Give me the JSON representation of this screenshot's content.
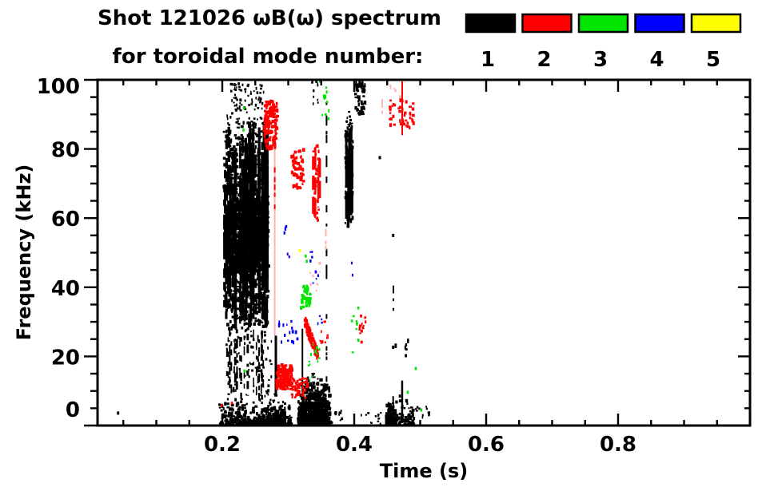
{
  "header": {
    "line1": "Shot 121026 ωB(ω) spectrum",
    "line2": "for toroidal mode number:"
  },
  "legend": {
    "modes": [
      {
        "label": "1",
        "color": "#000000"
      },
      {
        "label": "2",
        "color": "#ff0000"
      },
      {
        "label": "3",
        "color": "#00e400"
      },
      {
        "label": "4",
        "color": "#0000ff"
      },
      {
        "label": "5",
        "color": "#ffff00"
      }
    ]
  },
  "chart_data": {
    "type": "scatter",
    "title": "Shot 121026 ωB(ω) spectrum for toroidal mode number: 1-5",
    "xlabel": "Time (s)",
    "ylabel": "Frequency (kHz)",
    "xlim": [
      0.0109,
      1.0
    ],
    "ylim": [
      0,
      100
    ],
    "x_major_ticks": [
      0.2,
      0.4,
      0.6,
      0.8
    ],
    "x_tick_labels": [
      "0.2",
      "0.4",
      "0.6",
      "0.8"
    ],
    "x_minor_step": 0.05,
    "y_major_ticks": [
      0,
      20,
      40,
      60,
      80,
      100
    ],
    "y_tick_labels": [
      "0",
      "20",
      "40",
      "60",
      "80",
      "100"
    ],
    "y_minor_step": 5,
    "grid": false,
    "legend_position": "top-right",
    "mode_colors": {
      "1": "#000000",
      "2": "#ff0000",
      "3": "#00e400",
      "4": "#0000ff",
      "5": "#ffff00"
    },
    "pink_color": "#ffb2b2",
    "clusters": [
      {
        "style": "strands",
        "mode": 1,
        "t": [
          0.2025,
          0.2705
        ],
        "f": [
          28,
          88
        ],
        "strands": 58,
        "sw": [
          2,
          4
        ],
        "seg": [
          6,
          38
        ],
        "gap": [
          2,
          14
        ],
        "sub": 0.35,
        "seed": 11
      },
      {
        "style": "speckle",
        "mode": 1,
        "t": [
          0.2025,
          0.2705
        ],
        "f": [
          28,
          88
        ],
        "n": 620,
        "w": [
          2,
          4
        ],
        "h": [
          2,
          5
        ],
        "seed": 12
      },
      {
        "style": "speckle",
        "mode": 1,
        "t": [
          0.2121,
          0.2655
        ],
        "f": [
          44,
          65
        ],
        "n": 520,
        "w": [
          2.5,
          5
        ],
        "h": [
          3,
          7
        ],
        "seed": 13
      },
      {
        "style": "speckle",
        "mode": 1,
        "t": [
          0.206,
          0.263
        ],
        "f": [
          88,
          99
        ],
        "n": 85,
        "w": [
          1.5,
          3
        ],
        "h": [
          2,
          4
        ],
        "seed": 14
      },
      {
        "style": "strands",
        "mode": 1,
        "t": [
          0.206,
          0.2745
        ],
        "f": [
          6,
          28
        ],
        "strands": 22,
        "sw": [
          1.5,
          3
        ],
        "seg": [
          3,
          12
        ],
        "gap": [
          4,
          18
        ],
        "sub": 0.3,
        "seed": 15
      },
      {
        "style": "speckle",
        "mode": 1,
        "t": [
          0.206,
          0.2745
        ],
        "f": [
          6,
          28
        ],
        "n": 90,
        "w": [
          1.5,
          3
        ],
        "h": [
          2,
          4
        ],
        "seed": 16
      },
      {
        "style": "bottom",
        "mode": 1,
        "t": [
          0.1955,
          0.3055
        ],
        "f": [
          0,
          7
        ],
        "n": 430,
        "w": [
          2,
          4
        ],
        "h": [
          2,
          5
        ],
        "seed": 17
      },
      {
        "style": "bottom",
        "mode": 1,
        "t": [
          0.257,
          0.296
        ],
        "f": [
          0,
          9.5
        ],
        "n": 90,
        "w": [
          2,
          4
        ],
        "h": [
          2,
          4
        ],
        "seed": 18
      },
      {
        "style": "bottom",
        "mode": 1,
        "t": [
          0.3152,
          0.3636
        ],
        "f": [
          0,
          13
        ],
        "n": 520,
        "w": [
          2,
          4.5
        ],
        "h": [
          2,
          5
        ],
        "seed": 19
      },
      {
        "style": "bottom",
        "mode": 1,
        "t": [
          0.3212,
          0.3576
        ],
        "f": [
          0,
          16.5
        ],
        "n": 280,
        "w": [
          2,
          4.5
        ],
        "h": [
          2,
          5
        ],
        "seed": 20
      },
      {
        "style": "vline",
        "mode": 1,
        "t": [
          0.2812
        ],
        "f": [
          9,
          26
        ],
        "lw": 3
      },
      {
        "style": "vline",
        "mode": 1,
        "t": [
          0.3215
        ],
        "f": [
          6,
          28
        ],
        "lw": 2
      },
      {
        "style": "dashvline",
        "mode": 1,
        "t": [
          0.358
        ],
        "f": [
          12,
          97
        ],
        "n": 22,
        "h": [
          3,
          10
        ],
        "lw": 2,
        "seed": 21
      },
      {
        "style": "strands",
        "mode": 1,
        "t": [
          0.3865,
          0.398
        ],
        "f": [
          57,
          86.5
        ],
        "strands": 9,
        "sw": [
          2,
          3.5
        ],
        "seg": [
          15,
          60
        ],
        "gap": [
          2,
          8
        ],
        "sub": 0.25,
        "seed": 22
      },
      {
        "style": "speckle",
        "mode": 1,
        "t": [
          0.3865,
          0.398
        ],
        "f": [
          57,
          86.5
        ],
        "n": 90,
        "w": [
          2,
          3.5
        ],
        "h": [
          2,
          6
        ],
        "seed": 23
      },
      {
        "style": "speckle",
        "mode": 1,
        "t": [
          0.388,
          0.3965
        ],
        "f": [
          86.5,
          91
        ],
        "n": 12,
        "w": [
          1.5,
          3
        ],
        "h": [
          2,
          4
        ],
        "seed": 24
      },
      {
        "style": "speckle",
        "mode": 1,
        "t": [
          0.402,
          0.417
        ],
        "f": [
          90,
          99.5
        ],
        "n": 60,
        "w": [
          2,
          3.5
        ],
        "h": [
          2,
          5
        ],
        "seed": 25
      },
      {
        "style": "speckle",
        "mode": 1,
        "t": [
          0.3355,
          0.3455
        ],
        "f": [
          93,
          99.5
        ],
        "n": 10,
        "w": [
          1.5,
          3
        ],
        "h": [
          2,
          4
        ],
        "seed": 34
      },
      {
        "style": "dashvline",
        "mode": 1,
        "t": [
          0.4594
        ],
        "f": [
          32,
          40
        ],
        "n": 4,
        "h": [
          3,
          8
        ],
        "lw": 2,
        "seed": 26
      },
      {
        "style": "speckle",
        "mode": 1,
        "t": [
          0.4565,
          0.485
        ],
        "f": [
          20,
          25
        ],
        "n": 7,
        "w": [
          2,
          3
        ],
        "h": [
          3,
          6
        ],
        "seed": 27
      },
      {
        "style": "bottom",
        "mode": 1,
        "t": [
          0.4485,
          0.463
        ],
        "f": [
          0,
          6.5
        ],
        "n": 90,
        "w": [
          2,
          4
        ],
        "h": [
          2,
          5
        ],
        "seed": 35
      },
      {
        "style": "bottom",
        "mode": 1,
        "t": [
          0.4485,
          0.491
        ],
        "f": [
          0,
          9
        ],
        "n": 110,
        "w": [
          2,
          4
        ],
        "h": [
          2,
          5
        ],
        "seed": 28
      },
      {
        "style": "vline",
        "mode": 1,
        "t": [
          0.4727
        ],
        "f": [
          2,
          13
        ],
        "lw": 2.5
      },
      {
        "style": "vline",
        "mode": 1,
        "t": [
          0.459
        ],
        "f": [
          1,
          8.5
        ],
        "lw": 2
      },
      {
        "style": "dashvline",
        "mode": 1,
        "t": [
          0.4836
        ],
        "f": [
          1,
          7
        ],
        "n": 3,
        "h": [
          2,
          6
        ],
        "lw": 2,
        "seed": 29
      },
      {
        "style": "speckle",
        "mode": 1,
        "t": [
          0.4085,
          0.4412
        ],
        "f": [
          0.5,
          4
        ],
        "n": 13,
        "w": [
          1.5,
          3
        ],
        "h": [
          2,
          3.5
        ],
        "seed": 30
      },
      {
        "style": "speckle",
        "mode": 1,
        "t": [
          0.4933,
          0.5139
        ],
        "f": [
          1.5,
          5.5
        ],
        "n": 11,
        "w": [
          1.5,
          3
        ],
        "h": [
          2,
          3.5
        ],
        "seed": 31
      },
      {
        "style": "points",
        "mode": 1,
        "pts": [
          [
            0.042,
            3.6
          ],
          [
            0.4388,
            77.5
          ],
          [
            0.459,
            55
          ]
        ],
        "pw": 3,
        "ph": 4
      },
      {
        "style": "speckle",
        "mode": 1,
        "t": [
          0.364,
          0.383
        ],
        "f": [
          0.5,
          4.5
        ],
        "n": 10,
        "w": [
          1.5,
          3
        ],
        "h": [
          2,
          3.5
        ],
        "seed": 33
      },
      {
        "style": "speckle",
        "mode": 2,
        "t": [
          0.263,
          0.2835
        ],
        "f": [
          80,
          94
        ],
        "n": 125,
        "w": [
          2,
          4.5
        ],
        "h": [
          2.5,
          5.5
        ],
        "seed": 40
      },
      {
        "style": "vline",
        "mode": 2,
        "pink": true,
        "t": [
          0.2795
        ],
        "f": [
          26,
          80
        ],
        "lw": 2
      },
      {
        "style": "dashvline",
        "mode": 2,
        "t": [
          0.2795
        ],
        "f": [
          60,
          79
        ],
        "n": 6,
        "h": [
          3,
          8
        ],
        "lw": 2,
        "seed": 41
      },
      {
        "style": "speckle",
        "mode": 2,
        "t": [
          0.2825,
          0.3055
        ],
        "f": [
          10.5,
          17.5
        ],
        "n": 130,
        "w": [
          2,
          4.5
        ],
        "h": [
          2.5,
          5
        ],
        "seed": 42
      },
      {
        "style": "speckle",
        "mode": 2,
        "t": [
          0.3055,
          0.3295
        ],
        "f": [
          8,
          14
        ],
        "n": 45,
        "w": [
          2,
          4
        ],
        "h": [
          2,
          4.5
        ],
        "seed": 43
      },
      {
        "style": "speckle",
        "mode": 2,
        "t": [
          0.3055,
          0.3235
        ],
        "f": [
          68.5,
          80
        ],
        "n": 55,
        "w": [
          2,
          4
        ],
        "h": [
          2.5,
          5
        ],
        "seed": 44
      },
      {
        "style": "strands",
        "mode": 2,
        "t": [
          0.3375,
          0.3475
        ],
        "f": [
          59,
          82
        ],
        "strands": 4,
        "sw": [
          2,
          3.5
        ],
        "seg": [
          8,
          30
        ],
        "gap": [
          3,
          10
        ],
        "sub": 0.3,
        "seed": 45
      },
      {
        "style": "speckle",
        "mode": 2,
        "t": [
          0.3375,
          0.3475
        ],
        "f": [
          59,
          82
        ],
        "n": 30,
        "w": [
          2,
          3.5
        ],
        "h": [
          2,
          5
        ],
        "seed": 46
      },
      {
        "style": "dashvline",
        "mode": 2,
        "pink": true,
        "t": [
          0.357
        ],
        "f": [
          49,
          58
        ],
        "n": 5,
        "h": [
          3,
          7
        ],
        "lw": 2,
        "seed": 47
      },
      {
        "style": "diag",
        "mode": 2,
        "t": [
          0.3255,
          0.346
        ],
        "f": [
          19.5,
          30
        ],
        "n": 85,
        "w": [
          2,
          4
        ],
        "h": [
          2.5,
          5
        ],
        "dir": -1,
        "jitter": 3.5,
        "seed": 48
      },
      {
        "style": "speckle",
        "mode": 2,
        "pink": true,
        "t": [
          0.333,
          0.35
        ],
        "f": [
          39,
          50
        ],
        "n": 8,
        "w": [
          1.5,
          3
        ],
        "h": [
          2,
          4
        ],
        "seed": 49
      },
      {
        "style": "speckle",
        "mode": 2,
        "t": [
          0.3479,
          0.36
        ],
        "f": [
          24,
          30.5
        ],
        "n": 10,
        "w": [
          1.5,
          3
        ],
        "h": [
          2,
          4
        ],
        "seed": 50
      },
      {
        "style": "speckle",
        "mode": 2,
        "t": [
          0.408,
          0.421
        ],
        "f": [
          24,
          32
        ],
        "n": 12,
        "w": [
          1.5,
          3.5
        ],
        "h": [
          2,
          4.5
        ],
        "seed": 51
      },
      {
        "style": "dashvline",
        "mode": 2,
        "pink": true,
        "t": [
          0.4424
        ],
        "f": [
          85,
          97
        ],
        "n": 5,
        "h": [
          3,
          8
        ],
        "lw": 2,
        "seed": 52
      },
      {
        "style": "speckle",
        "mode": 2,
        "t": [
          0.453,
          0.49
        ],
        "f": [
          86,
          94.5
        ],
        "n": 40,
        "w": [
          2,
          4
        ],
        "h": [
          2.5,
          5
        ],
        "seed": 53
      },
      {
        "style": "vline",
        "mode": 2,
        "t": [
          0.4727
        ],
        "f": [
          84,
          100
        ],
        "lw": 2
      },
      {
        "style": "points",
        "mode": 2,
        "pts": [
          [
            0.1988,
            5.8
          ],
          [
            0.2145,
            6.5
          ],
          [
            0.481,
            87.5
          ],
          [
            0.4848,
            89
          ]
        ],
        "pw": 2.5,
        "ph": 3.5
      },
      {
        "style": "speckle",
        "mode": 2,
        "pink": true,
        "t": [
          0.453,
          0.4775
        ],
        "f": [
          95,
          100
        ],
        "n": 6,
        "w": [
          1.5,
          2.5
        ],
        "h": [
          2,
          4
        ],
        "seed": 55
      },
      {
        "style": "speckle",
        "mode": 3,
        "t": [
          0.341,
          0.363
        ],
        "f": [
          88,
          99.5
        ],
        "n": 12,
        "w": [
          1.5,
          3
        ],
        "h": [
          2,
          5
        ],
        "seed": 60
      },
      {
        "style": "speckle",
        "mode": 3,
        "t": [
          0.3195,
          0.3335
        ],
        "f": [
          34,
          40.5
        ],
        "n": 45,
        "w": [
          2,
          3.5
        ],
        "h": [
          2.5,
          5
        ],
        "seed": 61
      },
      {
        "style": "speckle",
        "mode": 3,
        "t": [
          0.327,
          0.348
        ],
        "f": [
          12,
          23.5
        ],
        "n": 13,
        "w": [
          1.5,
          3
        ],
        "h": [
          2,
          4.5
        ],
        "seed": 62
      },
      {
        "style": "points",
        "mode": 3,
        "pts": [
          [
            0.3265,
            49
          ],
          [
            0.328,
            47.5
          ],
          [
            0.2327,
            91.9
          ],
          [
            0.232,
            85.5
          ],
          [
            0.234,
            15.7
          ],
          [
            0.4933,
            16.5
          ],
          [
            0.481,
            9.6
          ],
          [
            0.5018,
            4.5
          ]
        ],
        "pw": 2.5,
        "ph": 4
      },
      {
        "style": "speckle",
        "mode": 3,
        "t": [
          0.3955,
          0.4065
        ],
        "f": [
          20,
          34.5
        ],
        "n": 9,
        "w": [
          1.5,
          3
        ],
        "h": [
          2,
          4
        ],
        "seed": 63
      },
      {
        "style": "speckle",
        "mode": 4,
        "t": [
          0.285,
          0.318
        ],
        "f": [
          23,
          30.5
        ],
        "n": 16,
        "w": [
          1.5,
          3
        ],
        "h": [
          2.5,
          5
        ],
        "seed": 70
      },
      {
        "style": "diag",
        "mode": 4,
        "t": [
          0.2933,
          0.2995
        ],
        "f": [
          55.5,
          58.5
        ],
        "n": 5,
        "w": [
          1.5,
          2.5
        ],
        "h": [
          2.5,
          4
        ],
        "dir": 1,
        "jitter": 1,
        "seed": 71
      },
      {
        "style": "points",
        "mode": 4,
        "pts": [
          [
            0.3015,
            48.8
          ],
          [
            0.299,
            49.6
          ]
        ],
        "pw": 2,
        "ph": 3.5
      },
      {
        "style": "speckle",
        "mode": 4,
        "t": [
          0.3315,
          0.339
        ],
        "f": [
          47,
          50.5
        ],
        "n": 5,
        "w": [
          1.5,
          2.5
        ],
        "h": [
          2,
          4
        ],
        "seed": 72
      },
      {
        "style": "speckle",
        "mode": 4,
        "t": [
          0.3355,
          0.346
        ],
        "f": [
          40,
          44.5
        ],
        "n": 5,
        "w": [
          1.5,
          2.5
        ],
        "h": [
          2,
          4
        ],
        "seed": 73
      },
      {
        "style": "speckle",
        "mode": 4,
        "t": [
          0.3415,
          0.352
        ],
        "f": [
          29,
          32.5
        ],
        "n": 4,
        "w": [
          1.5,
          2.5
        ],
        "h": [
          2,
          4
        ],
        "seed": 74
      },
      {
        "style": "points",
        "mode": 4,
        "pts": [
          [
            0.3962,
            47
          ],
          [
            0.3975,
            43.5
          ]
        ],
        "pw": 2,
        "ph": 3.5
      },
      {
        "style": "points",
        "mode": 5,
        "pts": [
          [
            0.3176,
            50.6
          ]
        ],
        "pw": 3,
        "ph": 4
      }
    ]
  }
}
